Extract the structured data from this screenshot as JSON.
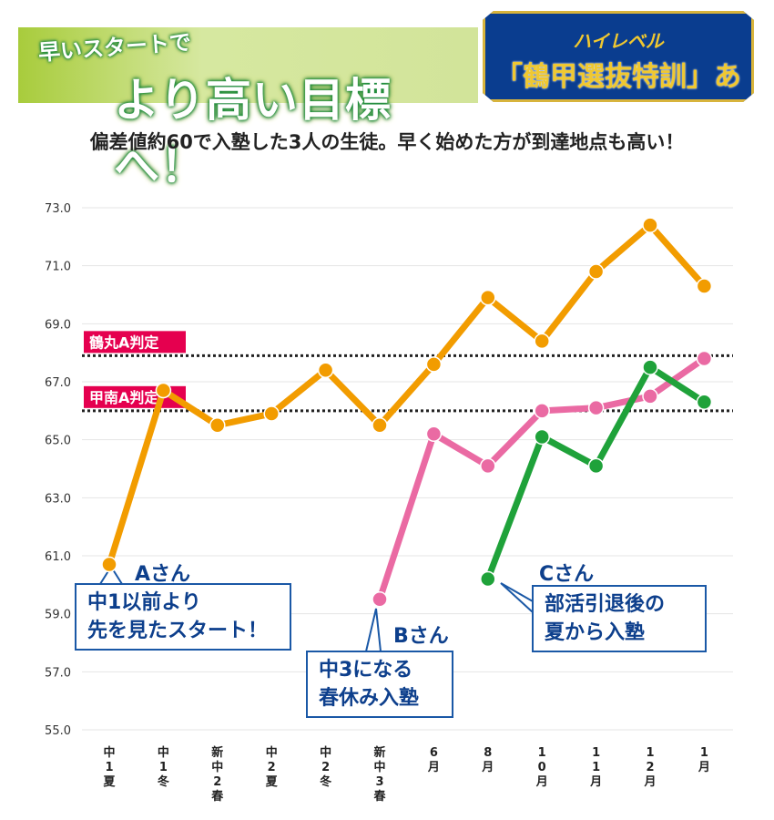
{
  "header": {
    "line1": "早いスタートで",
    "line2": "より高い目標へ！",
    "badge_top": "ハイレベル",
    "badge_main": "「鶴甲選抜特訓」あり"
  },
  "chart_data": {
    "type": "line",
    "title": "偏差値約60で入塾した3人の生徒。早く始めた方が到達地点も高い！",
    "categories": [
      "中1夏",
      "中1冬",
      "新中2春",
      "中2夏",
      "中2冬",
      "新中3春",
      "6月",
      "8月",
      "10月",
      "11月",
      "12月",
      "1月"
    ],
    "ylim": [
      55,
      73
    ],
    "yticks": [
      "55.0",
      "57.0",
      "59.0",
      "61.0",
      "63.0",
      "65.0",
      "67.0",
      "69.0",
      "71.0",
      "73.0"
    ],
    "grid": true,
    "series": [
      {
        "name": "Aさん",
        "color": "#f29c00",
        "values": [
          60.7,
          66.7,
          65.5,
          65.9,
          67.4,
          65.5,
          67.6,
          69.9,
          68.4,
          70.8,
          72.4,
          70.3
        ]
      },
      {
        "name": "Bさん",
        "color": "#ea6aa3",
        "values": [
          null,
          null,
          null,
          null,
          null,
          59.5,
          65.2,
          64.1,
          66.0,
          66.1,
          66.5,
          67.8
        ]
      },
      {
        "name": "Cさん",
        "color": "#1fa23a",
        "values": [
          null,
          null,
          null,
          null,
          null,
          null,
          null,
          60.2,
          65.1,
          64.1,
          67.5,
          66.3
        ]
      }
    ],
    "reference_lines": [
      {
        "label": "鶴丸A判定",
        "value": 67.9
      },
      {
        "label": "甲南A判定",
        "value": 66.0
      }
    ],
    "annotations": [
      {
        "name": "Aさん",
        "text1": "中1以前より",
        "text2": "先を見たスタート！"
      },
      {
        "name": "Bさん",
        "text1": "中3になる",
        "text2": "春休み入塾"
      },
      {
        "name": "Cさん",
        "text1": "部活引退後の",
        "text2": "夏から入塾"
      }
    ],
    "label_color": "#e5004f"
  }
}
